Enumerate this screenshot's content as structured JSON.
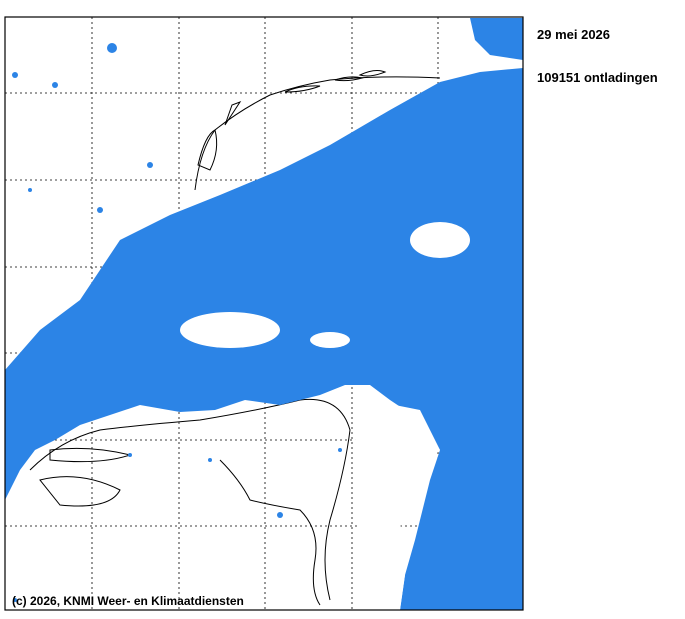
{
  "date": "29 mei 2026",
  "discharges": "109151 ontladingen",
  "credit": "(c) 2026, KNMI Weer- en Klimaatdiensten"
}
